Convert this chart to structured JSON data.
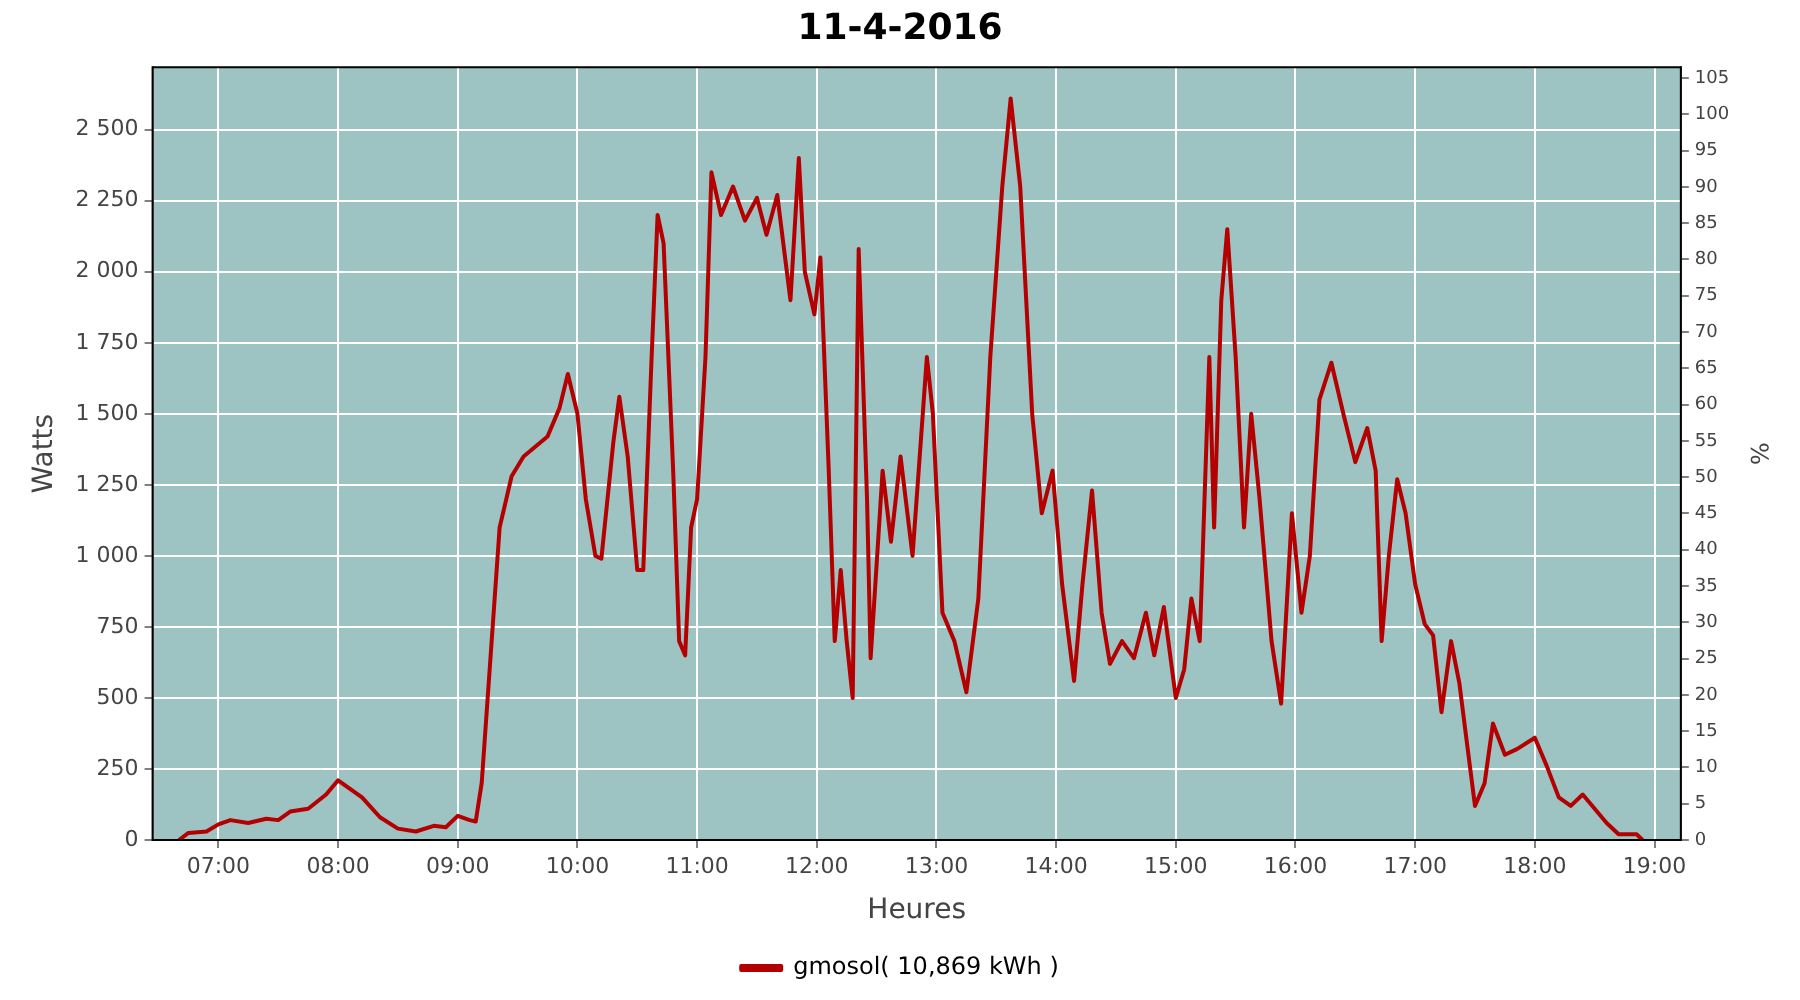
{
  "chart_data": {
    "type": "line",
    "title": "11-4-2016",
    "xlabel": "Heures",
    "ylabel": "Watts",
    "y2label": "%",
    "xlim": [
      6.45,
      19.22
    ],
    "xticks": [
      {
        "value": 7,
        "label": "07:00"
      },
      {
        "value": 8,
        "label": "08:00"
      },
      {
        "value": 9,
        "label": "09:00"
      },
      {
        "value": 10,
        "label": "10:00"
      },
      {
        "value": 11,
        "label": "11:00"
      },
      {
        "value": 12,
        "label": "12:00"
      },
      {
        "value": 13,
        "label": "13:00"
      },
      {
        "value": 14,
        "label": "14:00"
      },
      {
        "value": 15,
        "label": "15:00"
      },
      {
        "value": 16,
        "label": "16:00"
      },
      {
        "value": 17,
        "label": "17:00"
      },
      {
        "value": 18,
        "label": "18:00"
      },
      {
        "value": 19,
        "label": "19:00"
      }
    ],
    "ylim": [
      0,
      2720
    ],
    "yticks": [
      0,
      250,
      500,
      750,
      {
        "value": 1000,
        "label": "1 000"
      },
      {
        "value": 1250,
        "label": "1 250"
      },
      {
        "value": 1500,
        "label": "1 500"
      },
      {
        "value": 1750,
        "label": "1 750"
      },
      {
        "value": 2000,
        "label": "2 000"
      },
      {
        "value": 2250,
        "label": "2 250"
      },
      {
        "value": 2500,
        "label": "2 500"
      }
    ],
    "y2lim": [
      0,
      106.5
    ],
    "y2ticks": [
      0,
      5,
      10,
      15,
      20,
      25,
      30,
      35,
      40,
      45,
      50,
      55,
      60,
      65,
      70,
      75,
      80,
      85,
      90,
      95,
      100,
      105
    ],
    "grid": true,
    "legend": "bottom",
    "marker": "none",
    "line_style": "solid",
    "series": [
      {
        "name": "gmosol( 10,869 kWh )",
        "color": "#b40000",
        "x": [
          6.67,
          6.75,
          6.9,
          7.0,
          7.1,
          7.25,
          7.4,
          7.5,
          7.6,
          7.75,
          7.9,
          8.0,
          8.1,
          8.2,
          8.35,
          8.5,
          8.65,
          8.8,
          8.9,
          9.0,
          9.1,
          9.15,
          9.2,
          9.3,
          9.35,
          9.45,
          9.55,
          9.75,
          9.85,
          9.92,
          10.0,
          10.07,
          10.15,
          10.2,
          10.3,
          10.35,
          10.42,
          10.5,
          10.55,
          10.62,
          10.67,
          10.72,
          10.8,
          10.85,
          10.9,
          10.95,
          11.0,
          11.07,
          11.12,
          11.2,
          11.3,
          11.4,
          11.5,
          11.58,
          11.67,
          11.72,
          11.78,
          11.85,
          11.9,
          11.98,
          12.03,
          12.1,
          12.15,
          12.2,
          12.25,
          12.3,
          12.35,
          12.42,
          12.45,
          12.55,
          12.62,
          12.7,
          12.8,
          12.92,
          12.97,
          13.05,
          13.15,
          13.25,
          13.35,
          13.45,
          13.55,
          13.62,
          13.7,
          13.8,
          13.88,
          13.97,
          14.05,
          14.15,
          14.22,
          14.3,
          14.38,
          14.45,
          14.55,
          14.65,
          14.75,
          14.82,
          14.9,
          15.0,
          15.07,
          15.13,
          15.2,
          15.28,
          15.32,
          15.38,
          15.43,
          15.5,
          15.57,
          15.63,
          15.7,
          15.8,
          15.88,
          15.97,
          16.05,
          16.12,
          16.2,
          16.3,
          16.4,
          16.5,
          16.6,
          16.67,
          16.72,
          16.78,
          16.85,
          16.92,
          17.0,
          17.08,
          17.15,
          17.22,
          17.3,
          17.37,
          17.43,
          17.5,
          17.58,
          17.65,
          17.75,
          17.85,
          18.0,
          18.1,
          18.2,
          18.3,
          18.4,
          18.5,
          18.6,
          18.7,
          18.85,
          18.9
        ],
        "values": [
          0,
          25,
          30,
          55,
          70,
          60,
          75,
          70,
          100,
          110,
          160,
          210,
          180,
          150,
          80,
          40,
          30,
          50,
          45,
          85,
          70,
          65,
          200,
          800,
          1100,
          1280,
          1350,
          1420,
          1520,
          1640,
          1500,
          1200,
          1000,
          990,
          1400,
          1560,
          1350,
          950,
          950,
          1700,
          2200,
          2100,
          1300,
          700,
          650,
          1100,
          1200,
          1700,
          2350,
          2200,
          2300,
          2180,
          2260,
          2130,
          2270,
          2100,
          1900,
          2400,
          2000,
          1850,
          2050,
          1300,
          700,
          950,
          700,
          500,
          2080,
          1200,
          640,
          1300,
          1050,
          1350,
          1000,
          1700,
          1500,
          800,
          700,
          520,
          850,
          1700,
          2300,
          2610,
          2300,
          1500,
          1150,
          1300,
          900,
          560,
          900,
          1230,
          800,
          620,
          700,
          640,
          800,
          650,
          820,
          500,
          600,
          850,
          700,
          1700,
          1100,
          1900,
          2150,
          1700,
          1100,
          1500,
          1200,
          700,
          480,
          1150,
          800,
          1000,
          1550,
          1680,
          1500,
          1330,
          1450,
          1300,
          700,
          1000,
          1270,
          1150,
          900,
          760,
          720,
          450,
          700,
          550,
          350,
          120,
          200,
          410,
          300,
          320,
          360,
          260,
          150,
          120,
          160,
          110,
          60,
          20,
          20,
          0
        ]
      }
    ]
  }
}
